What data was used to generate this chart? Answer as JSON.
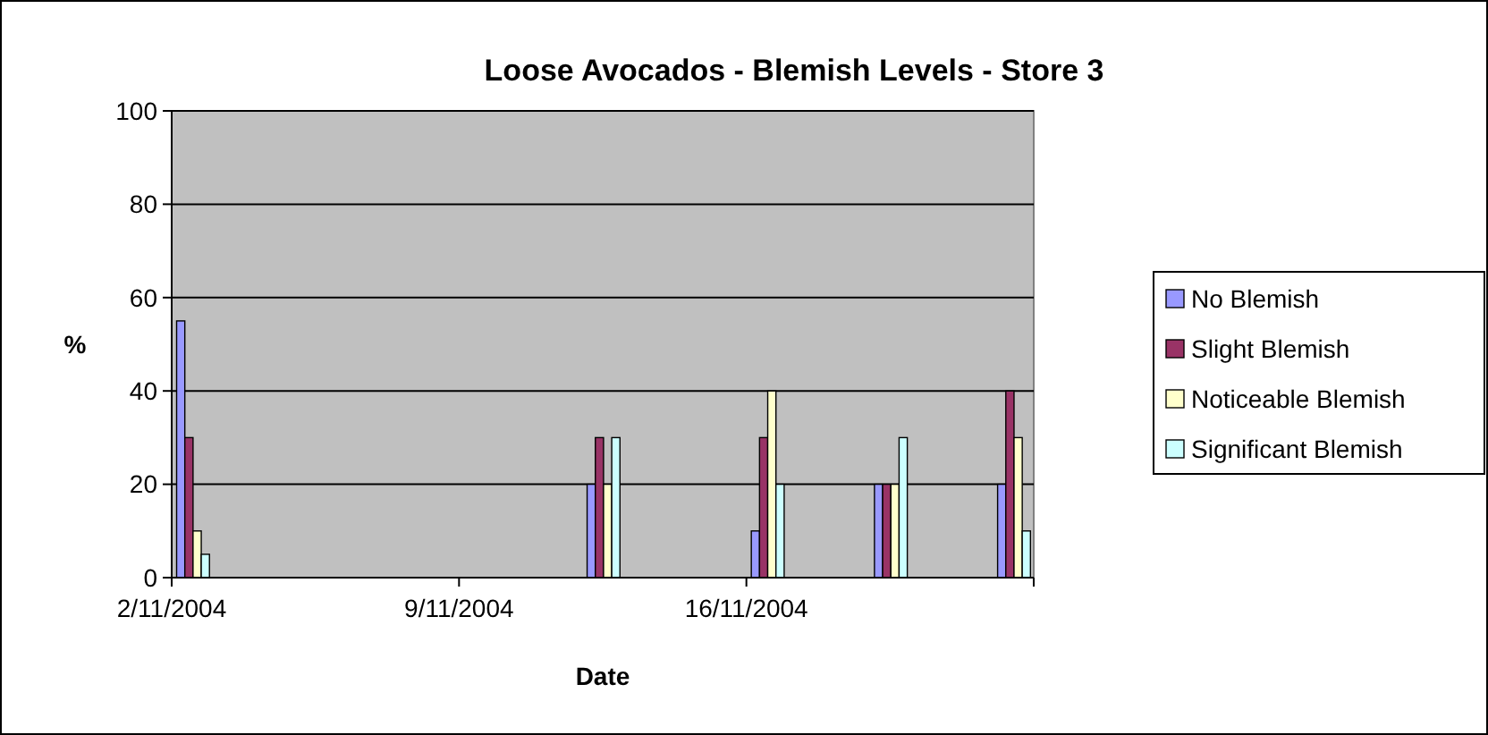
{
  "chart_data": {
    "type": "bar",
    "title": "Loose Avocados - Blemish Levels - Store 3",
    "xlabel": "Date",
    "ylabel": "%",
    "x": [
      "2004-11-02",
      "2004-11-12",
      "2004-11-16",
      "2004-11-19",
      "2004-11-22"
    ],
    "series": [
      {
        "name": "No Blemish",
        "color": "#9999ff",
        "values": [
          55,
          20,
          10,
          20,
          20
        ]
      },
      {
        "name": "Slight Blemish",
        "color": "#993366",
        "values": [
          30,
          30,
          30,
          20,
          40
        ]
      },
      {
        "name": "Noticeable Blemish",
        "color": "#ffffcc",
        "values": [
          10,
          20,
          40,
          20,
          30
        ]
      },
      {
        "name": "Significant Blemish",
        "color": "#ccffff",
        "values": [
          5,
          30,
          20,
          30,
          10
        ]
      }
    ],
    "xlim": [
      "2004-11-02",
      "2004-11-23"
    ],
    "xticks": [
      {
        "value": "2004-11-02",
        "label": "2/11/2004"
      },
      {
        "value": "2004-11-09",
        "label": "9/11/2004"
      },
      {
        "value": "2004-11-16",
        "label": "16/11/2004"
      },
      {
        "value": "2004-11-23",
        "label": null
      }
    ],
    "ylim": [
      0,
      100
    ],
    "yticks": [
      0,
      20,
      40,
      60,
      80,
      100
    ],
    "grid": "y",
    "legend": "right"
  }
}
